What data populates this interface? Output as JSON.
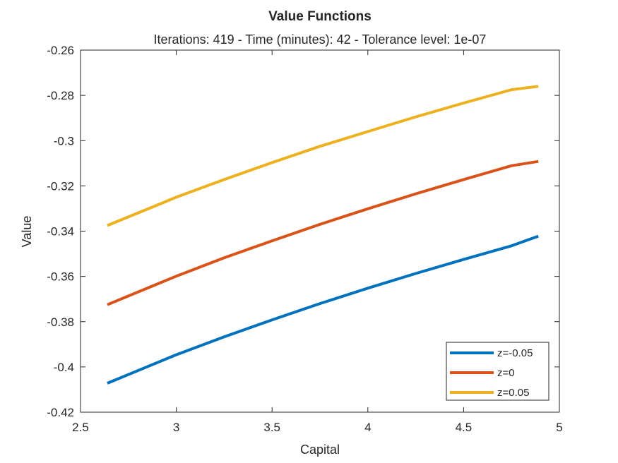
{
  "chart_data": {
    "type": "line",
    "title": "Value Functions",
    "subtitle": "Iterations: 419 - Time (minutes): 42 - Tolerance level: 1e-07",
    "xlabel": "Capital",
    "ylabel": "Value",
    "xlim": [
      2.5,
      5
    ],
    "ylim": [
      -0.42,
      -0.26
    ],
    "xticks": [
      2.5,
      3,
      3.5,
      4,
      4.5,
      5
    ],
    "xtick_labels": [
      "2.5",
      "3",
      "3.5",
      "4",
      "4.5",
      "5"
    ],
    "yticks": [
      -0.42,
      -0.4,
      -0.38,
      -0.36,
      -0.34,
      -0.32,
      -0.3,
      -0.28,
      -0.26
    ],
    "ytick_labels": [
      "-0.42",
      "-0.4",
      "-0.38",
      "-0.36",
      "-0.34",
      "-0.32",
      "-0.3",
      "-0.28",
      "-0.26"
    ],
    "grid": false,
    "legend_position": "bottom-right",
    "x": [
      2.64,
      2.9,
      3.0,
      3.25,
      3.5,
      3.75,
      4.0,
      4.25,
      4.5,
      4.75,
      4.89
    ],
    "series": [
      {
        "name": "z=-0.05",
        "color": "#0072BD",
        "values": [
          -0.4072,
          -0.3981,
          -0.3946,
          -0.3867,
          -0.3792,
          -0.372,
          -0.3652,
          -0.3587,
          -0.3525,
          -0.3465,
          -0.3422
        ]
      },
      {
        "name": "z=0",
        "color": "#D95319",
        "values": [
          -0.3725,
          -0.3634,
          -0.3599,
          -0.3518,
          -0.3443,
          -0.337,
          -0.3301,
          -0.3235,
          -0.3172,
          -0.3111,
          -0.3092
        ]
      },
      {
        "name": "z=0.05",
        "color": "#EDB120",
        "values": [
          -0.3375,
          -0.3285,
          -0.325,
          -0.3172,
          -0.3097,
          -0.3025,
          -0.296,
          -0.2895,
          -0.2834,
          -0.2775,
          -0.276
        ]
      }
    ]
  }
}
